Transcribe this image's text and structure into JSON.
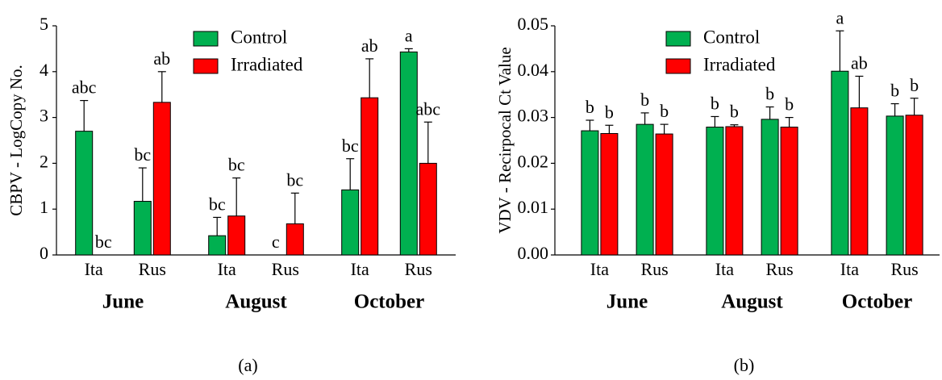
{
  "chart_data": [
    {
      "type": "bar",
      "panel_label": "(a)",
      "ylabel": "CBPV - LogCopy No.",
      "categories": [
        "Ita",
        "Rus",
        "Ita",
        "Rus",
        "Ita",
        "Rus"
      ],
      "groups": [
        "June",
        "August",
        "October"
      ],
      "series": [
        {
          "name": "Control",
          "color": "#00b050",
          "values": [
            2.7,
            1.17,
            0.42,
            0,
            1.42,
            4.43
          ],
          "errors": [
            0.67,
            0.73,
            0.4,
            null,
            0.68,
            0.07
          ],
          "letters": [
            "abc",
            "bc",
            "bc",
            "c",
            "bc",
            "a"
          ]
        },
        {
          "name": "Irradiated",
          "color": "#ff0000",
          "values": [
            0,
            3.33,
            0.85,
            0.68,
            3.43,
            2.0
          ],
          "errors": [
            null,
            0.67,
            0.83,
            0.67,
            0.85,
            0.9
          ],
          "letters": [
            "bc",
            "ab",
            "bc",
            "bc",
            "ab",
            "abc"
          ]
        }
      ],
      "ylim": [
        0,
        5
      ],
      "yticks": [
        0,
        1,
        2,
        3,
        4,
        5
      ],
      "legend": "upper center"
    },
    {
      "type": "bar",
      "panel_label": "(b)",
      "ylabel": "VDV - Recirpocal Ct Value",
      "categories": [
        "Ita",
        "Rus",
        "Ita",
        "Rus",
        "Ita",
        "Rus"
      ],
      "groups": [
        "June",
        "August",
        "October"
      ],
      "series": [
        {
          "name": "Control",
          "color": "#00b050",
          "values": [
            0.0271,
            0.0285,
            0.0279,
            0.0296,
            0.0401,
            0.0303
          ],
          "errors": [
            0.0023,
            0.0025,
            0.0023,
            0.0027,
            0.0088,
            0.0027
          ],
          "letters": [
            "b",
            "b",
            "b",
            "b",
            "a",
            "b"
          ]
        },
        {
          "name": "Irradiated",
          "color": "#ff0000",
          "values": [
            0.0265,
            0.0264,
            0.028,
            0.0279,
            0.0321,
            0.0305
          ],
          "errors": [
            0.0018,
            0.0021,
            0.0004,
            0.0021,
            0.0069,
            0.0037
          ],
          "letters": [
            "b",
            "b",
            "b",
            "b",
            "ab",
            "b"
          ]
        }
      ],
      "ylim": [
        0,
        0.05
      ],
      "yticks": [
        {
          "value": 0,
          "label": "0.00"
        },
        0.01,
        0.02,
        0.03,
        0.04,
        0.05
      ],
      "legend": "upper center"
    }
  ]
}
